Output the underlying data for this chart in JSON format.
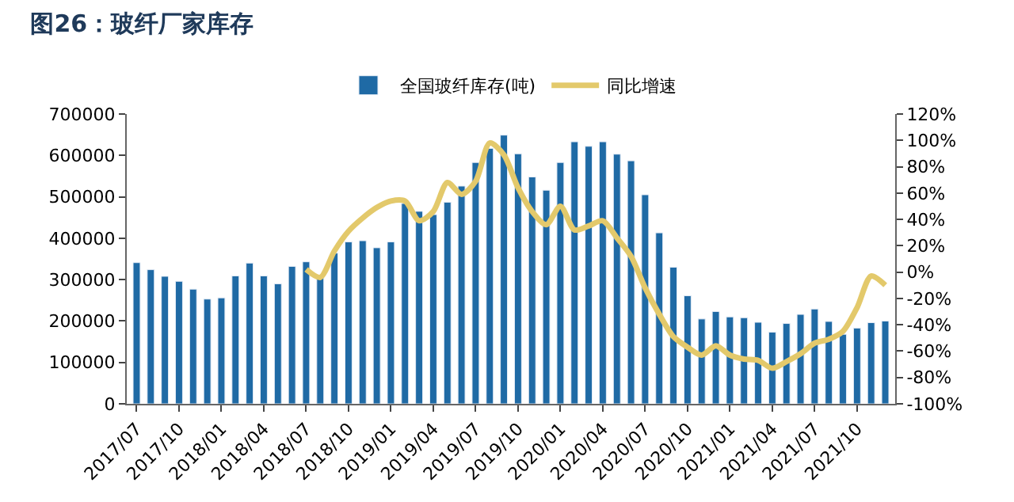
{
  "chart_data": {
    "type": "bar",
    "title": "图26：玻纤厂家库存",
    "categories": [
      "2017/07",
      null,
      null,
      "2017/10",
      null,
      null,
      "2018/01",
      null,
      null,
      "2018/04",
      null,
      null,
      "2018/07",
      null,
      null,
      "2018/10",
      null,
      null,
      "2019/01",
      null,
      null,
      "2019/04",
      null,
      null,
      "2019/07",
      null,
      null,
      "2019/10",
      null,
      null,
      "2020/01",
      null,
      null,
      "2020/04",
      null,
      null,
      "2020/07",
      null,
      null,
      "2020/10",
      null,
      null,
      "2021/01",
      null,
      null,
      "2021/04",
      null,
      null,
      "2021/07",
      null,
      null,
      "2021/10",
      null,
      null
    ],
    "series": [
      {
        "name": "全国玻纤库存(吨)",
        "color": "#1f6aa5",
        "values": [
          341000,
          324000,
          308000,
          296000,
          277000,
          253000,
          256000,
          309000,
          340000,
          309000,
          290000,
          332000,
          343000,
          304000,
          364000,
          391000,
          394000,
          377000,
          391000,
          484000,
          465000,
          457000,
          487000,
          526000,
          583000,
          617000,
          649000,
          604000,
          548000,
          516000,
          583000,
          633000,
          622000,
          633000,
          603000,
          587000,
          505000,
          413000,
          330000,
          261000,
          205000,
          223000,
          210000,
          208000,
          197000,
          173000,
          194000,
          216000,
          229000,
          199000,
          168000,
          183000,
          196000,
          200000
        ]
      },
      {
        "name": "同比增速",
        "type": "line",
        "axis": "y2",
        "color": "#e3c96b",
        "values": [
          null,
          null,
          null,
          null,
          null,
          null,
          null,
          null,
          null,
          null,
          null,
          null,
          2,
          -4,
          16,
          31,
          41,
          49,
          54,
          54,
          39,
          46,
          68,
          59,
          69,
          98,
          89,
          64,
          46,
          36,
          50,
          32,
          35,
          39,
          26,
          12,
          -12,
          -32,
          -49,
          -57,
          -63,
          -56,
          -63,
          -66,
          -67,
          -73,
          -68,
          -62,
          -54,
          -51,
          -45,
          -27,
          -3,
          -10
        ]
      }
    ],
    "ylim": [
      0,
      700000
    ],
    "yticks": [
      0,
      100000,
      200000,
      300000,
      400000,
      500000,
      600000,
      700000
    ],
    "y2lim": [
      -100,
      120
    ],
    "y2ticks": [
      {
        "value": -100,
        "label": "-100%"
      },
      {
        "value": -80,
        "label": "-80%"
      },
      {
        "value": -60,
        "label": "-60%"
      },
      {
        "value": -40,
        "label": "-40%"
      },
      {
        "value": -20,
        "label": "-20%"
      },
      {
        "value": 0,
        "label": "0%"
      },
      {
        "value": 20,
        "label": "20%"
      },
      {
        "value": 40,
        "label": "40%"
      },
      {
        "value": 60,
        "label": "60%"
      },
      {
        "value": 80,
        "label": "80%"
      },
      {
        "value": 100,
        "label": "100%"
      },
      {
        "value": 120,
        "label": "120%"
      }
    ],
    "legend": "top",
    "marker": "none"
  }
}
